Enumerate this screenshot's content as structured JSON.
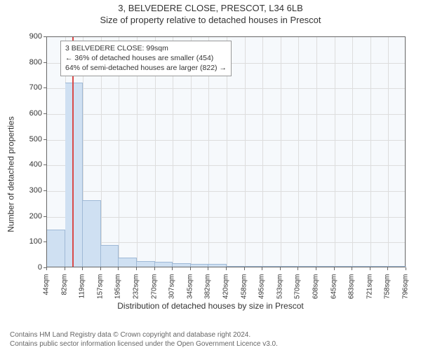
{
  "header": {
    "address": "3, BELVEDERE CLOSE, PRESCOT, L34 6LB",
    "subtitle": "Size of property relative to detached houses in Prescot"
  },
  "chart": {
    "type": "histogram",
    "ylabel": "Number of detached properties",
    "xlabel": "Distribution of detached houses by size in Prescot",
    "background_color": "#f6f9fc",
    "grid_color": "#dddddd",
    "axis_color": "#666666",
    "bar_color": "#cfe0f2",
    "bar_border": "#9fb9d6",
    "marker_color": "#d94a49",
    "marker_sqm": 99,
    "ylim": [
      0,
      900
    ],
    "ytick_step": 100,
    "y_ticks": [
      0,
      100,
      200,
      300,
      400,
      500,
      600,
      700,
      800,
      900
    ],
    "x_start_sqm": 44,
    "x_bin_width_sqm": 37.6,
    "x_tick_labels": [
      "44sqm",
      "82sqm",
      "119sqm",
      "157sqm",
      "195sqm",
      "232sqm",
      "270sqm",
      "307sqm",
      "345sqm",
      "382sqm",
      "420sqm",
      "458sqm",
      "495sqm",
      "533sqm",
      "570sqm",
      "608sqm",
      "645sqm",
      "683sqm",
      "721sqm",
      "758sqm",
      "796sqm"
    ],
    "bars": [
      145,
      718,
      260,
      85,
      35,
      22,
      18,
      15,
      12,
      10,
      4,
      4,
      3,
      3,
      2,
      2,
      2,
      2,
      2,
      2
    ],
    "legend": {
      "l1": "3 BELVEDERE CLOSE: 99sqm",
      "l2": "← 36% of detached houses are smaller (454)",
      "l3": "64% of semi-detached houses are larger (822) →"
    },
    "label_fontsize": 12
  },
  "attribution": {
    "line1": "Contains HM Land Registry data © Crown copyright and database right 2024.",
    "line2": "Contains public sector information licensed under the Open Government Licence v3.0."
  }
}
